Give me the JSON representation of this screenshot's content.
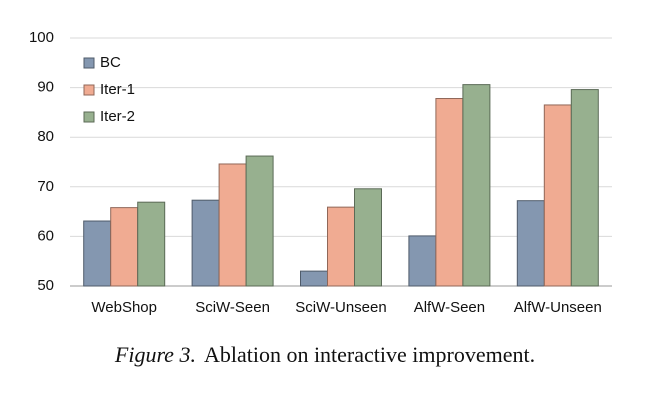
{
  "chart_data": {
    "type": "bar",
    "categories": [
      "WebShop",
      "SciW-Seen",
      "SciW-Unseen",
      "AlfW-Seen",
      "AlfW-Unseen"
    ],
    "series": [
      {
        "name": "BC",
        "color": "#8497b0",
        "values": [
          63.1,
          67.3,
          53.0,
          60.1,
          67.2
        ]
      },
      {
        "name": "Iter-1",
        "color": "#f0ab92",
        "values": [
          65.8,
          74.6,
          65.9,
          87.8,
          86.5
        ]
      },
      {
        "name": "Iter-2",
        "color": "#97b08f",
        "values": [
          66.9,
          76.2,
          69.6,
          90.6,
          89.6
        ]
      }
    ],
    "ylim": [
      50,
      100
    ],
    "yticks": [
      50,
      60,
      70,
      80,
      90,
      100
    ],
    "grid": true,
    "legend": "upper-left",
    "caption_label": "Figure 3.",
    "caption": "Ablation on interactive improvement."
  }
}
